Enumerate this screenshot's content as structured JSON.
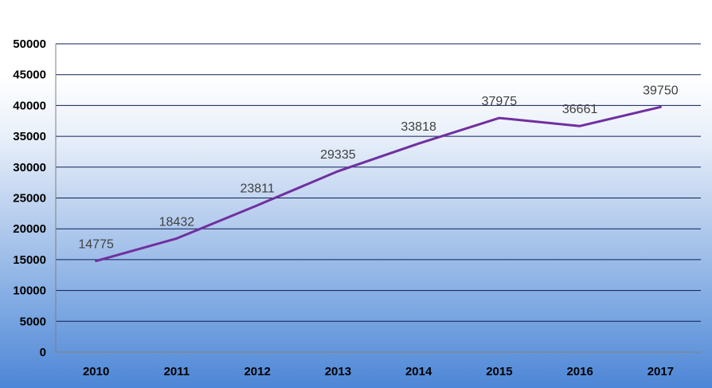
{
  "chart_data": {
    "type": "line",
    "title": "",
    "xlabel": "",
    "ylabel": "",
    "categories": [
      "2010",
      "2011",
      "2012",
      "2013",
      "2014",
      "2015",
      "2016",
      "2017"
    ],
    "series": [
      {
        "values": [
          14775,
          18432,
          23811,
          29335,
          33818,
          37975,
          36661,
          39750
        ],
        "color": "#7030a0"
      }
    ],
    "data_labels": [
      "14775",
      "18432",
      "23811",
      "29335",
      "33818",
      "37975",
      "36661",
      "39750"
    ],
    "y_ticks": [
      "0",
      "5000",
      "10000",
      "15000",
      "20000",
      "25000",
      "30000",
      "35000",
      "40000",
      "45000",
      "50000"
    ],
    "ylim": [
      0,
      50000
    ],
    "grid": true,
    "legend": "none",
    "gridline_color": "#0d1f55",
    "background_gradient": [
      "#ffffff",
      "#4d86d6"
    ]
  }
}
